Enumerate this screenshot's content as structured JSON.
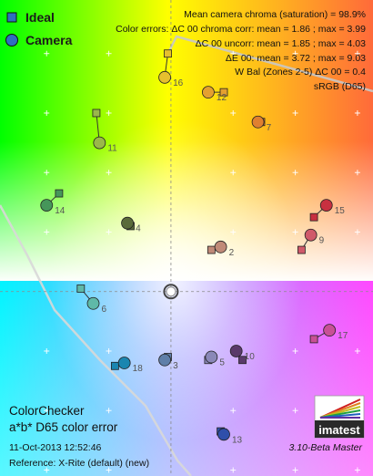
{
  "chart_data": {
    "type": "scatter",
    "title": "ColorChecker",
    "subtitle": "a*b* D65 color error",
    "legend": [
      {
        "name": "Ideal",
        "marker": "square",
        "color": "#2f6fc0"
      },
      {
        "name": "Camera",
        "marker": "circle",
        "color": "#2f6fc0"
      }
    ],
    "stats": [
      "Mean camera chroma (saturation) = 98.9%",
      "Color errors: ΔC 00 chroma corr:  mean = 1.86 ;  max = 3.99",
      "ΔC 00 uncorr:  mean = 1.85 ;  max = 4.03",
      "ΔE 00:  mean = 3.72 ;  max = 9.03",
      "W Bal (Zones 2-5) ΔC 00 = 0.4",
      "sRGB (D65)"
    ],
    "axes": {
      "a_range": [
        -55,
        65
      ],
      "b_range": [
        -62,
        98
      ],
      "grid": true,
      "center_crosshair": true
    },
    "patches": [
      {
        "id": "2",
        "ideal": [
          13,
          14
        ],
        "camera": [
          16,
          15
        ],
        "color": "#c08a78"
      },
      {
        "id": "3",
        "ideal": [
          -1,
          -22
        ],
        "camera": [
          -2,
          -23
        ],
        "color": "#5f7fa8"
      },
      {
        "id": "4",
        "ideal": [
          -13,
          22
        ],
        "camera": [
          -14,
          23
        ],
        "color": "#5a6b3a"
      },
      {
        "id": "5",
        "ideal": [
          12,
          -23
        ],
        "camera": [
          13,
          -22
        ],
        "color": "#8a88b8"
      },
      {
        "id": "6",
        "ideal": [
          -29,
          1
        ],
        "camera": [
          -25,
          -4
        ],
        "color": "#5fb9a8"
      },
      {
        "id": "7",
        "ideal": [
          29,
          57
        ],
        "camera": [
          28,
          57
        ],
        "color": "#e08030"
      },
      {
        "id": "9",
        "ideal": [
          42,
          14
        ],
        "camera": [
          45,
          19
        ],
        "color": "#d05a6a"
      },
      {
        "id": "10",
        "ideal": [
          23,
          -23
        ],
        "camera": [
          21,
          -20
        ],
        "color": "#5a3a6a"
      },
      {
        "id": "11",
        "ideal": [
          -24,
          60
        ],
        "camera": [
          -23,
          50
        ],
        "color": "#9ab84a"
      },
      {
        "id": "12",
        "ideal": [
          17,
          67
        ],
        "camera": [
          12,
          67
        ],
        "color": "#e4a030"
      },
      {
        "id": "13",
        "ideal": [
          16,
          -47
        ],
        "camera": [
          17,
          -48
        ],
        "color": "#2f4faa"
      },
      {
        "id": "14",
        "ideal": [
          -36,
          33
        ],
        "camera": [
          -40,
          29
        ],
        "color": "#46965a"
      },
      {
        "id": "15",
        "ideal": [
          46,
          25
        ],
        "camera": [
          50,
          29
        ],
        "color": "#c83040"
      },
      {
        "id": "16",
        "ideal": [
          -1,
          80
        ],
        "camera": [
          -2,
          72
        ],
        "color": "#e6c02e"
      },
      {
        "id": "17",
        "ideal": [
          46,
          -16
        ],
        "camera": [
          51,
          -13
        ],
        "color": "#c85096"
      },
      {
        "id": "18",
        "ideal": [
          -18,
          -25
        ],
        "camera": [
          -15,
          -24
        ],
        "color": "#1a86b0"
      }
    ],
    "footer": {
      "date": "11-Oct-2013 12:52:46",
      "reference": "Reference: X-Rite (default) (new)",
      "version": "3.10-Beta  Master",
      "logo": "imatest"
    }
  }
}
